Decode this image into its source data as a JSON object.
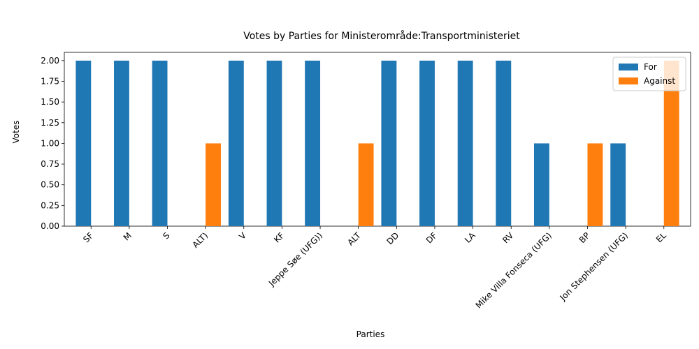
{
  "chart_data": {
    "type": "bar",
    "title": "Votes by Parties for Ministerområde:Transportministeriet",
    "xlabel": "Parties",
    "ylabel": "Votes",
    "categories": [
      "SF",
      "M",
      "S",
      "ALT)",
      "V",
      "KF",
      "Jeppe Søe (UFG))",
      "ALT",
      "DD",
      "DF",
      "LA",
      "RV",
      "Mike Villa Fonseca (UFG)",
      "BP",
      "Jon Stephensen (UFG)",
      "EL"
    ],
    "series": [
      {
        "name": "For",
        "color": "#1f77b4",
        "values": [
          2,
          2,
          2,
          0,
          2,
          2,
          2,
          0,
          2,
          2,
          2,
          2,
          1,
          0,
          1,
          0
        ]
      },
      {
        "name": "Against",
        "color": "#ff7f0e",
        "values": [
          0,
          0,
          0,
          1,
          0,
          0,
          0,
          1,
          0,
          0,
          0,
          0,
          0,
          1,
          0,
          2
        ]
      }
    ],
    "ylim": [
      0,
      2.1
    ],
    "yticks": [
      "0.00",
      "0.25",
      "0.50",
      "0.75",
      "1.00",
      "1.25",
      "1.50",
      "1.75",
      "2.00"
    ],
    "grid": false,
    "legend": "top-right"
  }
}
